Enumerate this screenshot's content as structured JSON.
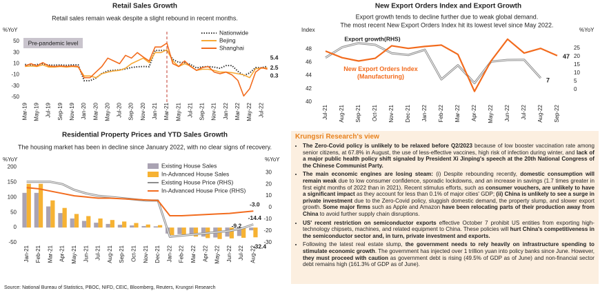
{
  "chart_data": [
    {
      "type": "line",
      "title": "Retail Sales Growth",
      "subtitle": "Retail sales remain weak despite a slight rebound in recent months.",
      "y_label": "%YoY",
      "annotation": "Pre-pandemic level",
      "legend": "upper right",
      "categories": [
        "Mar-19",
        null,
        "May-19",
        null,
        "Jul-19",
        null,
        "Sep-19",
        null,
        "Nov-19",
        null,
        "Jan-20",
        null,
        "Mar-20",
        null,
        "May-20",
        null,
        "Jul-20",
        null,
        "Sep-20",
        null,
        "Nov-20",
        null,
        "Jan-21",
        null,
        "Mar-21",
        null,
        "May-21",
        null,
        "Jul-21",
        null,
        "Sep-21",
        null,
        "Nov-21",
        null,
        "Jan-22",
        null,
        "Mar-22",
        null,
        "May-22",
        null,
        "Jul-22",
        null
      ],
      "ylim": [
        -55,
        60
      ],
      "yticks": [
        50,
        30,
        10,
        -10,
        -30,
        -50
      ],
      "series": [
        {
          "name": "Nationwide",
          "color": "#333333",
          "dash": "dotted",
          "values": [
            8.7,
            7.2,
            8.6,
            9.8,
            7.6,
            7.5,
            7.8,
            7.2,
            8.0,
            8.0,
            -20.5,
            -20.5,
            -15.8,
            -7.5,
            -2.8,
            -1.8,
            -1.1,
            0.5,
            3.3,
            4.3,
            5.0,
            4.6,
            33.8,
            33.8,
            34.2,
            17.7,
            12.4,
            12.1,
            8.5,
            2.5,
            4.4,
            4.9,
            3.9,
            1.7,
            6.7,
            6.7,
            -3.5,
            -11.1,
            -6.7,
            3.1,
            2.7,
            5.4
          ]
        },
        {
          "name": "Bejing",
          "color": "#f7a935",
          "values": [
            5,
            6,
            5,
            8,
            4,
            4,
            5,
            4,
            5,
            4,
            -12,
            -12,
            -15,
            -8,
            -5,
            -3,
            -2,
            2,
            10,
            15,
            20,
            12,
            30,
            30,
            35,
            15,
            5,
            10,
            6,
            -2,
            0,
            0,
            -2,
            -5,
            -5,
            -6,
            -8,
            -10,
            -15,
            1,
            2,
            2.5
          ]
        },
        {
          "name": "Shanghai",
          "color": "#f26b1d",
          "values": [
            6,
            10,
            6,
            12,
            6,
            5,
            6,
            5,
            6,
            5,
            -15,
            -15,
            -5,
            5,
            20,
            15,
            10,
            25,
            20,
            30,
            22,
            15,
            40,
            40,
            47,
            10,
            5,
            15,
            5,
            -2,
            3,
            5,
            -5,
            -8,
            -5,
            -10,
            -20,
            -48,
            -35,
            -5,
            3,
            0.3
          ]
        }
      ]
    },
    {
      "type": "line",
      "title": "New Export Orders Index and Export Growth",
      "subtitle": [
        "Export growth tends to decline further due to weak global demand.",
        "The most recent New Export Orders Index hit its lowest level since May 2022."
      ],
      "y_label": "Index",
      "y2_label": "%YoY",
      "categories": [
        "Jul-21",
        "Aug-21",
        "Sep-21",
        "Oct-21",
        "Nov-21",
        "Dec-21",
        "Jan-22",
        "Feb-22",
        "Mar-22",
        "Apr-22",
        "May-22",
        "Jun-22",
        "Jul-22",
        "Aug-22",
        "Sep-22"
      ],
      "ylim": [
        40,
        50
      ],
      "yticks": [
        40,
        42,
        44,
        46,
        48
      ],
      "y2lim": [
        -7.5,
        32.5
      ],
      "y2ticks": [
        0,
        5,
        10,
        15,
        20,
        25
      ],
      "series": [
        {
          "name": "Export growth(RHS)",
          "color": "#8c8c8c",
          "axis": "y2",
          "values": [
            19.3,
            25.6,
            28.1,
            27.1,
            22,
            20.9,
            24.1,
            6.2,
            14.7,
            3.9,
            16.9,
            17.9,
            18,
            7,
            null
          ]
        },
        {
          "name": "New Export Orders Index (Manufacturing)",
          "color": "#f26b1d",
          "values": [
            47.7,
            46.7,
            46.2,
            46.6,
            48.5,
            48.1,
            48.4,
            48.6,
            47.2,
            41.6,
            46.2,
            49.5,
            47.4,
            48.1,
            47
          ]
        }
      ]
    },
    {
      "type": "bar",
      "title": "Residential Property Prices and YTD Sales Growth",
      "subtitle": "The housing market has been in decline since January 2022, with no clear signs of recovery.",
      "y_label": "%YoY",
      "y2_label": "%YoY",
      "legend": "upper right",
      "categories": [
        "Jan-21",
        "Feb-21",
        "Mar-21",
        "Apr-21",
        "May-21",
        "Jun-21",
        "Jul-21",
        "Aug-21",
        "Sep-21",
        "Oct-21",
        "Nov-21",
        "Dec-21",
        "Jan-22",
        "Feb-22",
        "Mar-22",
        "Apr-22",
        "May-22",
        "Jun-22",
        "Jul-22",
        "Aug-22"
      ],
      "ylim": [
        -50,
        206
      ],
      "yticks": [
        -50,
        0,
        50,
        100,
        150,
        200
      ],
      "y2lim": [
        -30,
        36
      ],
      "y2ticks": [
        -30,
        -20,
        -10,
        0,
        10,
        20,
        30
      ],
      "series": [
        {
          "name": "Existing House Sales",
          "type": "bar",
          "color": "#aaa3b3",
          "values": [
            115,
            115,
            70,
            48,
            30,
            22,
            16,
            12,
            9,
            7,
            5,
            4,
            -20,
            -22,
            -25,
            -30,
            -33,
            -30,
            -28,
            -9.2
          ]
        },
        {
          "name": "In-Advanced House Sales",
          "type": "bar",
          "color": "#f6b233",
          "values": [
            145,
            145,
            90,
            65,
            45,
            38,
            30,
            25,
            20,
            15,
            10,
            8,
            -25,
            -28,
            -30,
            -35,
            -38,
            -36,
            -34,
            -32.4
          ]
        },
        {
          "name": "Existing House Price (RHS)",
          "type": "line",
          "axis": "y2",
          "color": "#8c8c8c",
          "values": [
            22,
            22,
            22,
            20,
            15,
            12,
            10,
            9,
            8,
            7,
            6,
            6,
            -25,
            -24,
            -23,
            -22,
            -21,
            -20,
            -18,
            -14.4
          ]
        },
        {
          "name": "In-Advanced House Price (RHS)",
          "type": "line",
          "axis": "y2",
          "color": "#f26b1d",
          "values": [
            17,
            16,
            14,
            12,
            10,
            9,
            8,
            8,
            7.5,
            7,
            6.5,
            6,
            -7,
            -7,
            -6.5,
            -6,
            -5.5,
            -5,
            -4,
            -3.0
          ],
          "value_labels": [
            null,
            null,
            null,
            null,
            null,
            null,
            null,
            null,
            null,
            null,
            null,
            null,
            null,
            null,
            null,
            null,
            null,
            null,
            null,
            "-3.0"
          ]
        }
      ]
    }
  ],
  "panel": {
    "title": "Krungsri Research's view",
    "bullets": [
      [
        {
          "text": "The Zero-Covid policy is unlikely to be relaxed before Q2/2023",
          "bold": true
        },
        {
          "text": " because of low booster vaccination rate among senior citizens, at 67.8% in August, the use of less-effective vaccines, high risk of infection during winter, and ",
          "bold": false
        },
        {
          "text": "lack of a major public health policy shift signaled by President Xi Jinping's speech at the 20th National Congress of the Chinese Communist Party.",
          "bold": true
        }
      ],
      [
        {
          "text": "The main economic engines are losing steam:",
          "bold": true
        },
        {
          "text": " (i) Despite rebounding recently, ",
          "bold": false
        },
        {
          "text": "domestic consumption will remain weak",
          "bold": true
        },
        {
          "text": " due to low consumer confidence, sporadic lockdowns, and an increase in savings (1.7 times greater in first eight months of 2022 than in 2021). Recent stimulus efforts, such as ",
          "bold": false
        },
        {
          "text": "consumer vouchers, are unlikely to have a significant impact",
          "bold": true
        },
        {
          "text": " as they account for less than 0.1% of major cities' GDP; ",
          "bold": false
        },
        {
          "text": "(ii) China is unlikely to see a surge in private investment",
          "bold": true
        },
        {
          "text": " due to the Zero-Covid policy, sluggish domestic demand, the property slump, and slower export growth. ",
          "bold": false
        },
        {
          "text": "Some major firms",
          "bold": true
        },
        {
          "text": " such as Apple and Amazon ",
          "bold": false
        },
        {
          "text": "have been relocating parts of their production away from China",
          "bold": true
        },
        {
          "text": " to avoid further supply chain disruptions.",
          "bold": false
        }
      ],
      [
        {
          "text": "US' recent restriction on semiconductor exports",
          "bold": true
        },
        {
          "text": " effective October 7 prohibit US entities from exporting high-technology chipsets, machines, and related equipment to China. These policies will ",
          "bold": false
        },
        {
          "text": "hurt China's competitiveness in the semiconductor sector and, in turn, private investment and exports.",
          "bold": true
        }
      ],
      [
        {
          "text": "Following the latest real estate slump, ",
          "bold": false
        },
        {
          "text": "the government needs to rely heavily on infrastructure spending to stimulate economic growth",
          "bold": true
        },
        {
          "text": ". The government has injected over 1 trillion yuan into policy banks since June. However, ",
          "bold": false
        },
        {
          "text": "they must proceed with caution",
          "bold": true
        },
        {
          "text": " as government debt is rising (49.5% of GDP as of June) and non-financial sector debt remains high (161.3% of GDP as of June).",
          "bold": false
        }
      ]
    ]
  },
  "source": "Source: National Bureau of Statistics, PBOC, NIFD, CEIC, Bloomberg, Reuters, Krungsri Research"
}
